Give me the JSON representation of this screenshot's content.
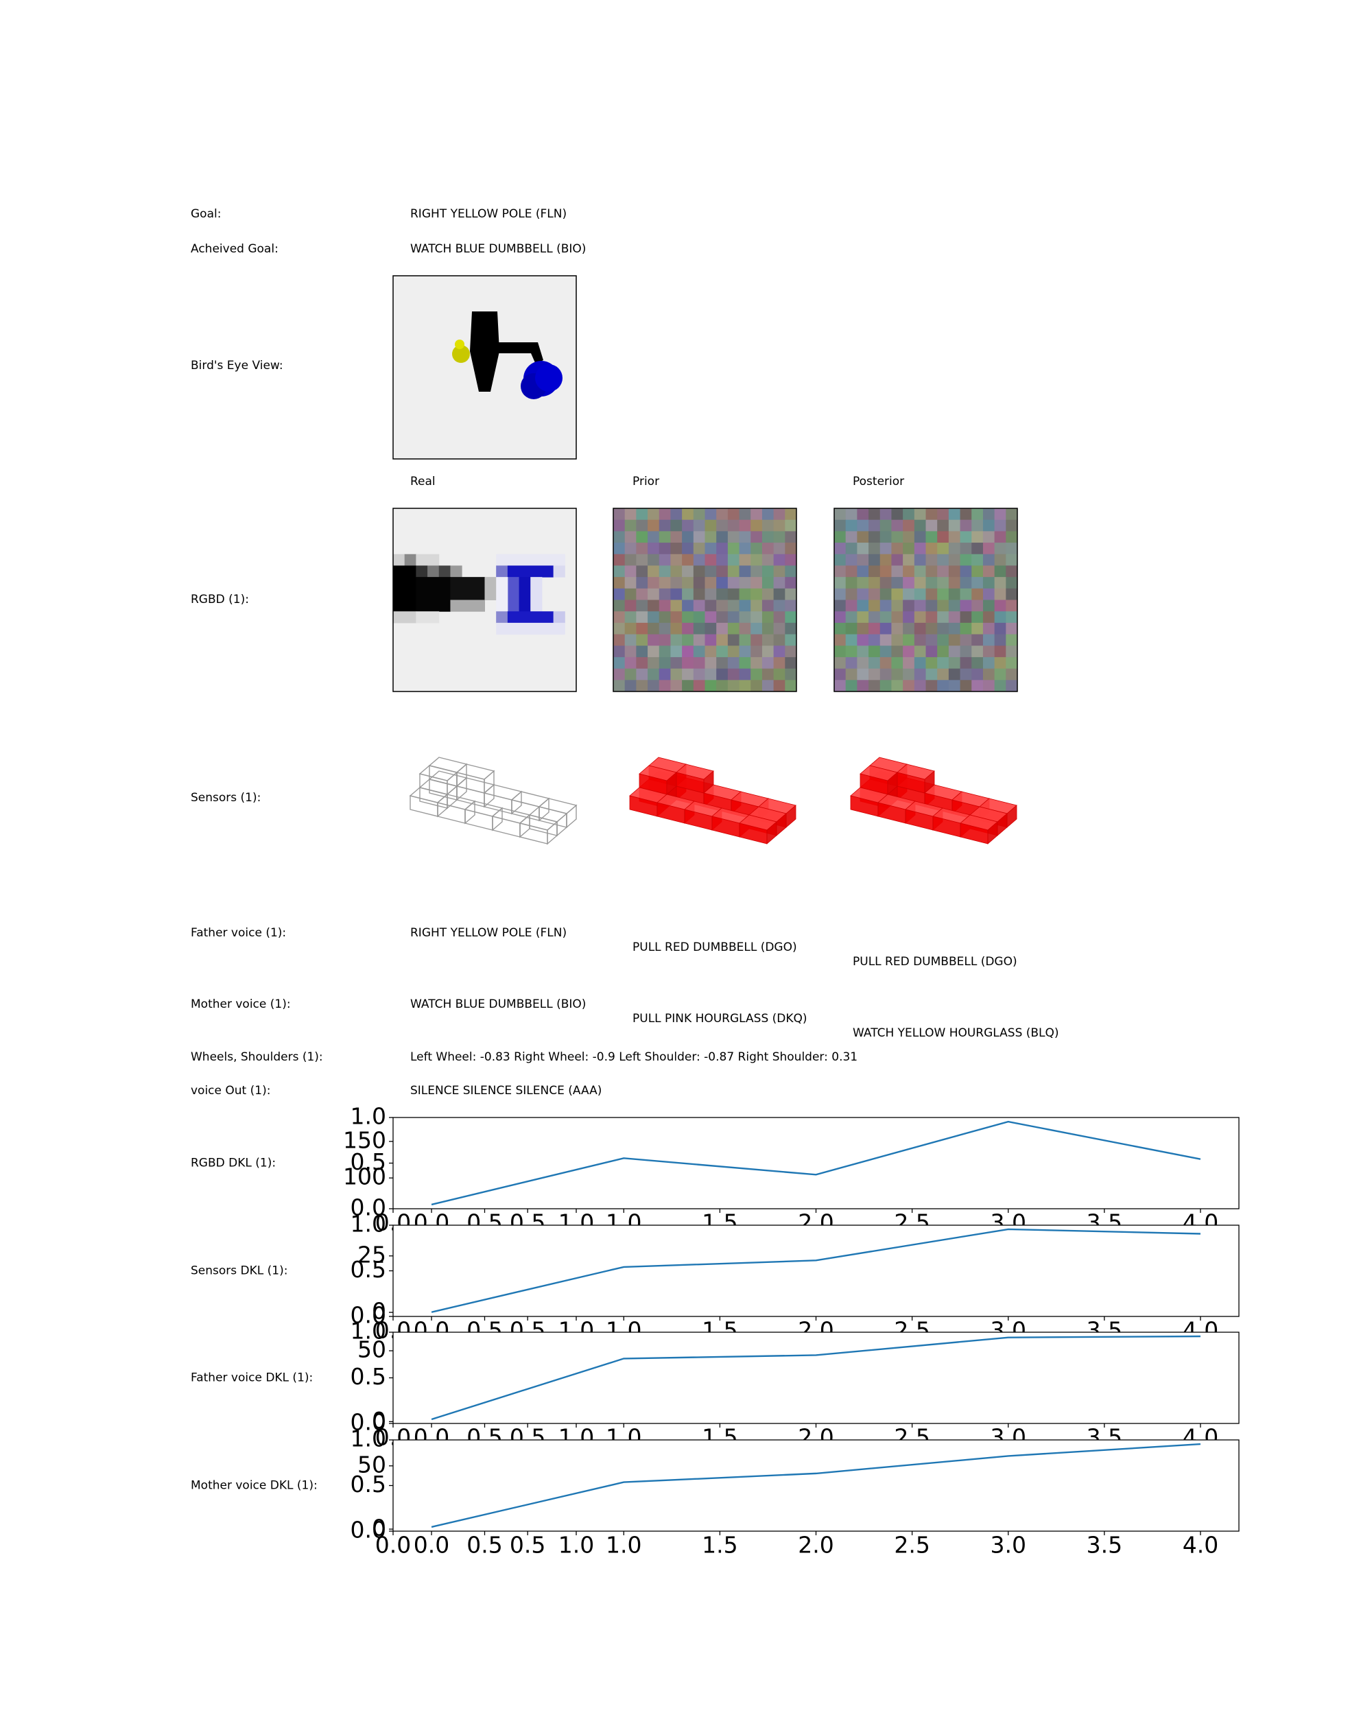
{
  "rows": [
    {
      "label": "Goal:",
      "values": [
        "RIGHT YELLOW POLE (FLN)"
      ]
    },
    {
      "label": "Acheived Goal:",
      "values": [
        "WATCH BLUE DUMBBELL (BIO)"
      ]
    },
    {
      "label": "Bird's Eye View:"
    },
    {
      "label": "RGBD (1):"
    },
    {
      "label": "Sensors (1):"
    },
    {
      "label": "Father voice (1):",
      "values": [
        "RIGHT YELLOW POLE (FLN)",
        "PULL RED DUMBBELL (DGO)",
        "PULL RED DUMBBELL (DGO)"
      ]
    },
    {
      "label": "Mother voice (1):",
      "values": [
        "WATCH BLUE DUMBBELL (BIO)",
        "PULL PINK HOURGLASS (DKQ)",
        "WATCH YELLOW HOURGLASS (BLQ)"
      ]
    },
    {
      "label": "Wheels, Shoulders (1):",
      "values": [
        "Left Wheel: -0.83 Right Wheel: -0.9 Left Shoulder: -0.87 Right Shoulder: 0.31"
      ]
    },
    {
      "label": "voice Out (1):",
      "values": [
        "SILENCE SILENCE SILENCE (AAA)"
      ]
    }
  ],
  "columns": [
    "Real",
    "Prior",
    "Posterior"
  ],
  "chart_data": [
    {
      "type": "line",
      "title": "RGBD DKL (1):",
      "color": "#1f77b4",
      "x": [
        0,
        1,
        2,
        3,
        4
      ],
      "values": [
        63.6,
        127,
        104.5,
        177,
        125.8
      ],
      "xlim": [
        -0.2,
        4.2
      ],
      "ylim": [
        57.9,
        182.7
      ],
      "xticks": [
        {
          "value": 0,
          "label": "0.0"
        },
        {
          "value": 0.5,
          "label": "0.5"
        },
        {
          "value": 1,
          "label": "1.0"
        },
        {
          "value": 1.5,
          "label": "1.5"
        },
        {
          "value": 2,
          "label": "2.0"
        },
        {
          "value": 2.5,
          "label": "2.5"
        },
        {
          "value": 3,
          "label": "3.0"
        },
        {
          "value": 3.5,
          "label": "3.5"
        },
        {
          "value": 4,
          "label": "4.0"
        }
      ],
      "yticks": [
        100,
        150
      ],
      "overlay": {
        "xlim": [
          0,
          1
        ],
        "ylim": [
          0,
          1
        ],
        "xticks": [
          {
            "value": 0,
            "label": "0.0"
          },
          {
            "value": 0.5,
            "label": "0.5"
          },
          {
            "value": 1,
            "label": "1.0"
          }
        ],
        "yticks": [
          {
            "value": 0,
            "label": "0.0"
          },
          {
            "value": 0.5,
            "label": "0.5"
          },
          {
            "value": 1,
            "label": "1.0"
          }
        ]
      }
    },
    {
      "type": "line",
      "title": "Sensors DKL (1):",
      "color": "#1f77b4",
      "x": [
        0,
        1,
        2,
        3,
        4
      ],
      "values": [
        0.1,
        20.1,
        23,
        36.8,
        34.8
      ],
      "xlim": [
        -0.2,
        4.2
      ],
      "ylim": [
        -1.8,
        38.6
      ],
      "xticks": [
        {
          "value": 0,
          "label": "0.0"
        },
        {
          "value": 0.5,
          "label": "0.5"
        },
        {
          "value": 1,
          "label": "1.0"
        },
        {
          "value": 1.5,
          "label": "1.5"
        },
        {
          "value": 2,
          "label": "2.0"
        },
        {
          "value": 2.5,
          "label": "2.5"
        },
        {
          "value": 3,
          "label": "3.0"
        },
        {
          "value": 3.5,
          "label": "3.5"
        },
        {
          "value": 4,
          "label": "4.0"
        }
      ],
      "yticks": [
        0,
        25
      ],
      "overlay": {
        "xlim": [
          0,
          1
        ],
        "ylim": [
          0,
          1
        ],
        "xticks": [
          {
            "value": 0,
            "label": "0.0"
          },
          {
            "value": 0.5,
            "label": "0.5"
          },
          {
            "value": 1,
            "label": "1.0"
          }
        ],
        "yticks": [
          {
            "value": 0,
            "label": "0.0"
          },
          {
            "value": 0.5,
            "label": "0.5"
          },
          {
            "value": 1,
            "label": "1.0"
          }
        ]
      }
    },
    {
      "type": "line",
      "title": "Father voice DKL (1):",
      "color": "#1f77b4",
      "x": [
        0,
        1,
        2,
        3,
        4
      ],
      "values": [
        1.6,
        44.5,
        46.9,
        59.4,
        60.2
      ],
      "xlim": [
        -0.2,
        4.2
      ],
      "ylim": [
        -1.3,
        63.1
      ],
      "xticks": [
        {
          "value": 0,
          "label": "0.0"
        },
        {
          "value": 0.5,
          "label": "0.5"
        },
        {
          "value": 1,
          "label": "1.0"
        },
        {
          "value": 1.5,
          "label": "1.5"
        },
        {
          "value": 2,
          "label": "2.0"
        },
        {
          "value": 2.5,
          "label": "2.5"
        },
        {
          "value": 3,
          "label": "3.0"
        },
        {
          "value": 3.5,
          "label": "3.5"
        },
        {
          "value": 4,
          "label": "4.0"
        }
      ],
      "yticks": [
        0,
        50
      ],
      "overlay": {
        "xlim": [
          0,
          1
        ],
        "ylim": [
          0,
          1
        ],
        "xticks": [
          {
            "value": 0,
            "label": "0.0"
          },
          {
            "value": 0.5,
            "label": "0.5"
          },
          {
            "value": 1,
            "label": "1.0"
          }
        ],
        "yticks": [
          {
            "value": 0,
            "label": "0.0"
          },
          {
            "value": 0.5,
            "label": "0.5"
          },
          {
            "value": 1,
            "label": "1.0"
          }
        ]
      }
    },
    {
      "type": "line",
      "title": "Mother voice DKL (1):",
      "color": "#1f77b4",
      "x": [
        0,
        1,
        2,
        3,
        4
      ],
      "values": [
        1.7,
        37.1,
        44,
        57.8,
        67.2
      ],
      "xlim": [
        -0.2,
        4.2
      ],
      "ylim": [
        -1.6,
        70.5
      ],
      "xticks": [
        {
          "value": 0,
          "label": "0.0"
        },
        {
          "value": 0.5,
          "label": "0.5"
        },
        {
          "value": 1,
          "label": "1.0"
        },
        {
          "value": 1.5,
          "label": "1.5"
        },
        {
          "value": 2,
          "label": "2.0"
        },
        {
          "value": 2.5,
          "label": "2.5"
        },
        {
          "value": 3,
          "label": "3.0"
        },
        {
          "value": 3.5,
          "label": "3.5"
        },
        {
          "value": 4,
          "label": "4.0"
        }
      ],
      "yticks": [
        0,
        50
      ],
      "overlay": {
        "xlim": [
          0,
          1
        ],
        "ylim": [
          0,
          1
        ],
        "xticks": [
          {
            "value": 0,
            "label": "0.0"
          },
          {
            "value": 0.5,
            "label": "0.5"
          },
          {
            "value": 1,
            "label": "1.0"
          }
        ],
        "yticks": [
          {
            "value": 0,
            "label": "0.0"
          },
          {
            "value": 0.5,
            "label": "0.5"
          },
          {
            "value": 1,
            "label": "1.0"
          }
        ]
      }
    }
  ]
}
